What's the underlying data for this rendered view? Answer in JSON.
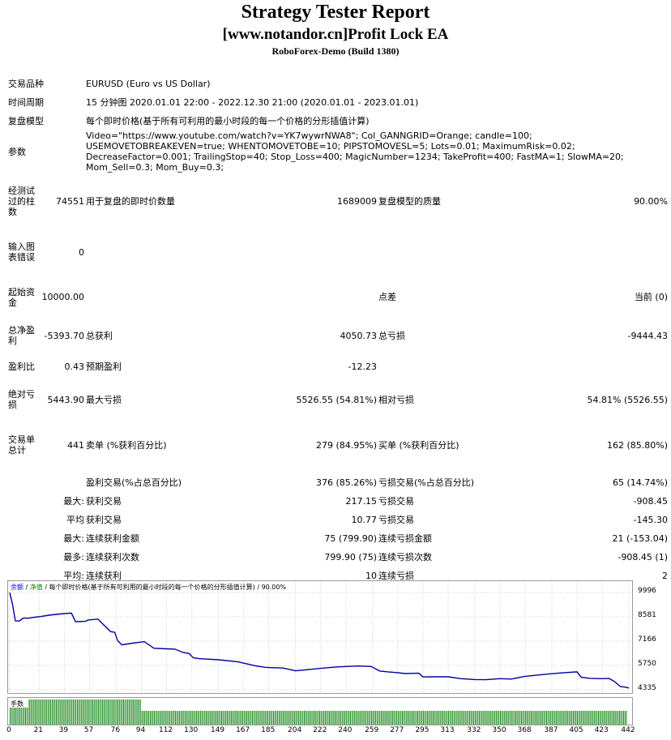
{
  "header": {
    "title": "Strategy Tester Report",
    "subtitle": "[www.notandor.cn]Profit Lock EA",
    "server": "RoboForex-Demo (Build 1380)"
  },
  "info": {
    "symbol_label": "交易品种",
    "symbol_value": "EURUSD (Euro vs US Dollar)",
    "period_label": "时间周期",
    "period_value": "15 分钟图 2020.01.01 22:00 - 2022.12.30 21:00 (2020.01.01 - 2023.01.01)",
    "model_label": "复盘模型",
    "model_value": "每个即时价格(基于所有可利用的最小时段的每一个价格的分形插值计算)",
    "params_label": "参数",
    "params_value": "Video=\"https://www.youtube.com/watch?v=YK7wywrNWA8\"; Col_GANNGRID=Orange; candle=100; USEMOVETOBREAKEVEN=true; WHENTOMOVETOBE=10; PIPSTOMOVESL=5; Lots=0.01; MaximumRisk=0.02; DecreaseFactor=0.001; TrailingStop=40; Stop_Loss=400; MagicNumber=1234; TakeProfit=400; FastMA=1; SlowMA=20; Mom_Sell=0.3; Mom_Buy=0.3;"
  },
  "stats": {
    "bars_label": "经测试过的柱数",
    "bars_value": "74551",
    "ticks_label": "用于复盘的即时价数量",
    "ticks_value": "1689009",
    "quality_label": "复盘模型的质量",
    "quality_value": "90.00%",
    "errors_label": "输入图表错误",
    "errors_value": "0",
    "deposit_label": "起始资金",
    "deposit_value": "10000.00",
    "spread_label": "点差",
    "spread_value": "当前 (0)",
    "net_label": "总净盈利",
    "net_value": "-5393.70",
    "gross_profit_label": "总获利",
    "gross_profit_value": "4050.73",
    "gross_loss_label": "总亏损",
    "gross_loss_value": "-9444.43",
    "pf_label": "盈利比",
    "pf_value": "0.43",
    "payoff_label": "预期盈利",
    "payoff_value": "-12.23",
    "abs_dd_label": "绝对亏损",
    "abs_dd_value": "5443.90",
    "max_dd_label": "最大亏损",
    "max_dd_value": "5526.55 (54.81%)",
    "rel_dd_label": "相对亏损",
    "rel_dd_value": "54.81% (5526.55)",
    "trades_label": "交易单总计",
    "trades_value": "441",
    "short_label": "卖单 (%获利百分比)",
    "short_value": "279 (84.95%)",
    "long_label": "买单 (%获利百分比)",
    "long_value": "162 (85.80%)",
    "win_label": "盈利交易(%占总百分比)",
    "win_value": "376 (85.26%)",
    "loss_label": "亏损交易(%占总百分比)",
    "loss_value": "65 (14.74%)",
    "r1_pre": "最大:",
    "r1_a_label": "获利交易",
    "r1_a_value": "217.15",
    "r1_b_label": "亏损交易",
    "r1_b_value": "-908.45",
    "r2_pre": "平均",
    "r2_a_label": "获利交易",
    "r2_a_value": "10.77",
    "r2_b_label": "亏损交易",
    "r2_b_value": "-145.30",
    "r3_pre": "最大:",
    "r3_a_label": "连续获利金额",
    "r3_a_value": "75 (799.90)",
    "r3_b_label": "连续亏损金额",
    "r3_b_value": "21 (-153.04)",
    "r4_pre": "最多:",
    "r4_a_label": "连续获利次数",
    "r4_a_value": "799.90 (75)",
    "r4_b_label": "连续亏损次数",
    "r4_b_value": "-908.45 (1)",
    "r5_pre": "平均:",
    "r5_a_label": "连续获利",
    "r5_a_value": "10",
    "r5_b_label": "连续亏损",
    "r5_b_value": "2"
  },
  "chart_data": {
    "type": "line",
    "legend_text": "余额 / 净值 / 每个即时价格(基于所有可利用的最小时段的每一个价格的分形插值计算) / 90.00%",
    "legend_balance": "余额",
    "legend_equity": "净值",
    "legend_rest": " / 每个即时价格(基于所有可利用的最小时段的每一个价格的分形插值计算) / 90.00%",
    "lots_label": "手数",
    "y_ticks": [
      "9996",
      "8581",
      "7166",
      "5750",
      "4335"
    ],
    "x_ticks": [
      "0",
      "21",
      "39",
      "57",
      "76",
      "94",
      "112",
      "130",
      "149",
      "167",
      "185",
      "204",
      "222",
      "240",
      "259",
      "277",
      "295",
      "313",
      "332",
      "350",
      "368",
      "387",
      "405",
      "423",
      "442"
    ],
    "xlim": [
      0,
      442
    ],
    "ylim": [
      4335,
      10000
    ],
    "series": [
      {
        "x": [
          0,
          2,
          4,
          7,
          9,
          11,
          13,
          16,
          18,
          22,
          28,
          36,
          44,
          47,
          54,
          56,
          63,
          66,
          72,
          75,
          77,
          80,
          88,
          92,
          94,
          96,
          103,
          112,
          118,
          124,
          128,
          131,
          135,
          149,
          163,
          176,
          183,
          195,
          204,
          210,
          222,
          232,
          240,
          249,
          258,
          264,
          270,
          277,
          282,
          292,
          295,
          303,
          313,
          322,
          332,
          340,
          350,
          358,
          368,
          378,
          387,
          396,
          405,
          408,
          414,
          423,
          428,
          432,
          436,
          440,
          442
        ],
        "values": [
          9990,
          9300,
          8350,
          8340,
          8480,
          8520,
          8500,
          8540,
          8560,
          8600,
          8680,
          8750,
          8800,
          8300,
          8320,
          8400,
          8450,
          8200,
          7720,
          7680,
          7200,
          6950,
          7050,
          7090,
          7110,
          7140,
          6750,
          6720,
          6700,
          6500,
          6450,
          6200,
          6150,
          6080,
          5960,
          5720,
          5640,
          5600,
          5440,
          5480,
          5580,
          5650,
          5690,
          5720,
          5690,
          5430,
          5380,
          5330,
          5280,
          5300,
          5080,
          5090,
          5090,
          4980,
          4930,
          4920,
          4980,
          4960,
          5120,
          5200,
          5270,
          5330,
          5380,
          5060,
          5000,
          4980,
          4990,
          4800,
          4520,
          4480,
          4440
        ]
      }
    ]
  },
  "colors": {
    "balance_line": "#0000a0",
    "lots_bar": "#1e8c1e",
    "legend_balance": "#0000ff",
    "legend_equity": "#008000"
  }
}
